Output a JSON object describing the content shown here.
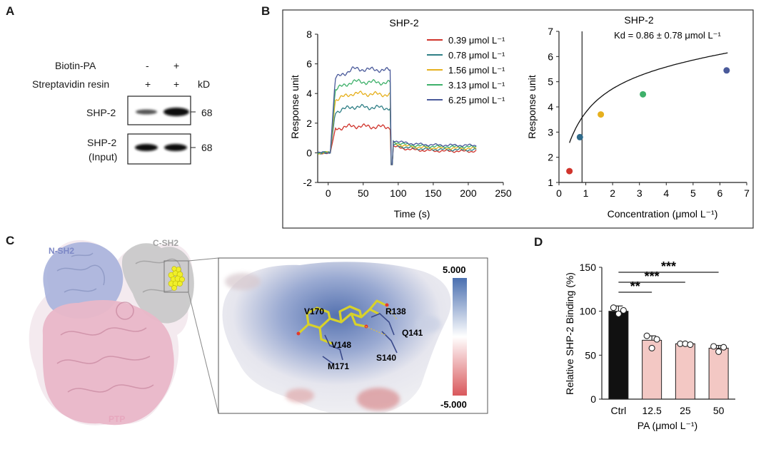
{
  "panels": {
    "A": "A",
    "B": "B",
    "C": "C",
    "D": "D"
  },
  "panelA": {
    "row1_label": "Biotin-PA",
    "row2_label": "Streptavidin resin",
    "row1_signs": [
      "-",
      "+"
    ],
    "row2_signs": [
      "+",
      "+"
    ],
    "unit": "kD",
    "blots": [
      {
        "label": "SHP-2",
        "mw": "68"
      },
      {
        "label_line1": "SHP-2",
        "label_line2": "(Input)",
        "mw": "68"
      }
    ]
  },
  "panelC": {
    "domain_labels": [
      "N-SH2",
      "C-SH2",
      "PTP"
    ],
    "residues": [
      "V170",
      "R138",
      "Q141",
      "V148",
      "S140",
      "M171"
    ],
    "scale_max": "5.000",
    "scale_min": "-5.000",
    "colors": {
      "nsh2": "#a9b3dc",
      "csh2": "#c9c9c9",
      "ptp": "#e9b7c8",
      "ligand": "#e8e830",
      "pos": "#5b78b4",
      "neg": "#d9676b"
    }
  },
  "chart_data": [
    {
      "type": "line",
      "title": "SHP-2",
      "xlabel": "Time (s)",
      "ylabel": "Response unit",
      "xlim": [
        -15,
        250
      ],
      "ylim": [
        -2,
        8
      ],
      "xticks": [
        "0",
        "50",
        "100",
        "150",
        "200",
        "250"
      ],
      "yticks": [
        "-2",
        "0",
        "2",
        "4",
        "6",
        "8"
      ],
      "legend_position": "top-right",
      "series": [
        {
          "name": "0.39 μmol L⁻¹",
          "color": "#d0342c",
          "plateau": 1.8,
          "dissoc": 0.1
        },
        {
          "name": "0.78 μmol L⁻¹",
          "color": "#2f7f86",
          "plateau": 3.1,
          "dissoc": 0.2
        },
        {
          "name": "1.56 μmol L⁻¹",
          "color": "#e6b01e",
          "plateau": 4.0,
          "dissoc": 0.3
        },
        {
          "name": "3.13 μmol L⁻¹",
          "color": "#3eb06a",
          "plateau": 4.8,
          "dissoc": 0.4
        },
        {
          "name": "6.25 μmol L⁻¹",
          "color": "#4a5a9a",
          "plateau": 5.65,
          "dissoc": 0.5
        }
      ]
    },
    {
      "type": "scatter",
      "title": "SHP-2",
      "annotation": "Kd = 0.86 ± 0.78 μmol L⁻¹",
      "xlabel": "Concentration (μmol L⁻¹)",
      "ylabel": "Response unit",
      "xlim": [
        0,
        7
      ],
      "ylim": [
        1,
        7
      ],
      "xticks": [
        "0",
        "1",
        "2",
        "3",
        "4",
        "5",
        "6",
        "7"
      ],
      "yticks": [
        "1",
        "2",
        "3",
        "4",
        "5",
        "6",
        "7"
      ],
      "kd_line_x": 0.86,
      "points": [
        {
          "x": 0.39,
          "y": 1.45,
          "color": "#d0342c"
        },
        {
          "x": 0.78,
          "y": 2.8,
          "color": "#2f6a8a"
        },
        {
          "x": 1.56,
          "y": 3.7,
          "color": "#e6b01e"
        },
        {
          "x": 3.13,
          "y": 4.5,
          "color": "#3eb06a"
        },
        {
          "x": 6.25,
          "y": 5.45,
          "color": "#4a5a9a"
        }
      ]
    },
    {
      "type": "bar",
      "xlabel": "PA (μmol L⁻¹)",
      "ylabel": "Relative SHP-2 Binding (%)",
      "ylim": [
        0,
        150
      ],
      "yticks": [
        "0",
        "50",
        "100",
        "150"
      ],
      "categories": [
        "Ctrl",
        "12.5",
        "25",
        "50"
      ],
      "values": [
        100,
        67,
        63,
        58
      ],
      "errors": [
        6,
        5,
        1,
        3
      ],
      "points": [
        [
          104,
          97,
          101
        ],
        [
          72,
          58,
          68
        ],
        [
          63,
          63,
          62
        ],
        [
          60,
          54,
          59
        ]
      ],
      "colors": [
        "#111111",
        "#f3c8c4",
        "#f3c8c4",
        "#f3c8c4"
      ],
      "significance": [
        {
          "from": "Ctrl",
          "to": "12.5",
          "label": "**"
        },
        {
          "from": "Ctrl",
          "to": "25",
          "label": "***"
        },
        {
          "from": "Ctrl",
          "to": "50",
          "label": "***"
        }
      ]
    }
  ]
}
